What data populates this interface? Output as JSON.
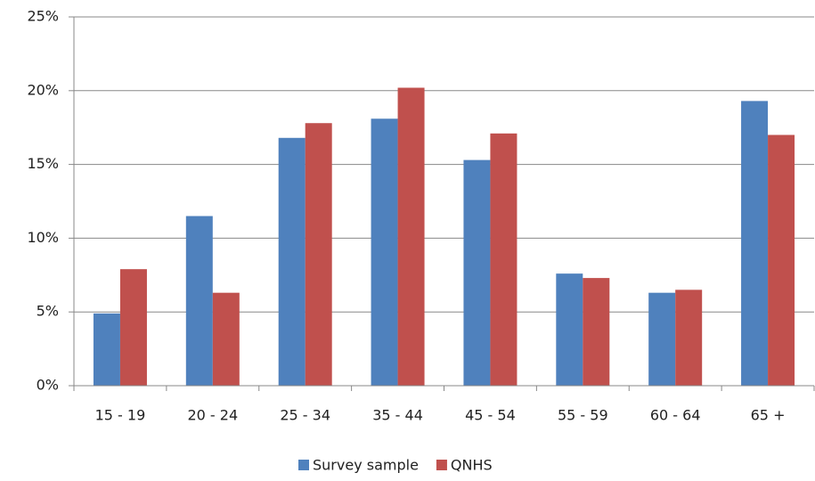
{
  "chart_data": {
    "type": "bar",
    "categories": [
      "15 - 19",
      "20 - 24",
      "25 - 34",
      "35 - 44",
      "45 - 54",
      "55 - 59",
      "60 - 64",
      "65 +"
    ],
    "series": [
      {
        "name": "Survey sample",
        "color": "#4f81bd",
        "values": [
          4.9,
          11.5,
          16.8,
          18.1,
          15.3,
          7.6,
          6.3,
          19.3
        ]
      },
      {
        "name": "QNHS",
        "color": "#c0504d",
        "values": [
          7.9,
          6.3,
          17.8,
          20.2,
          17.1,
          7.3,
          6.5,
          17.0
        ]
      }
    ],
    "ylim": [
      0,
      25
    ],
    "yticks": [
      {
        "value": 0,
        "label": "0%"
      },
      {
        "value": 5,
        "label": "5%"
      },
      {
        "value": 10,
        "label": "10%"
      },
      {
        "value": 15,
        "label": "15%"
      },
      {
        "value": 20,
        "label": "20%"
      },
      {
        "value": 25,
        "label": "25%"
      }
    ],
    "grid": true,
    "legend": "bottom"
  }
}
